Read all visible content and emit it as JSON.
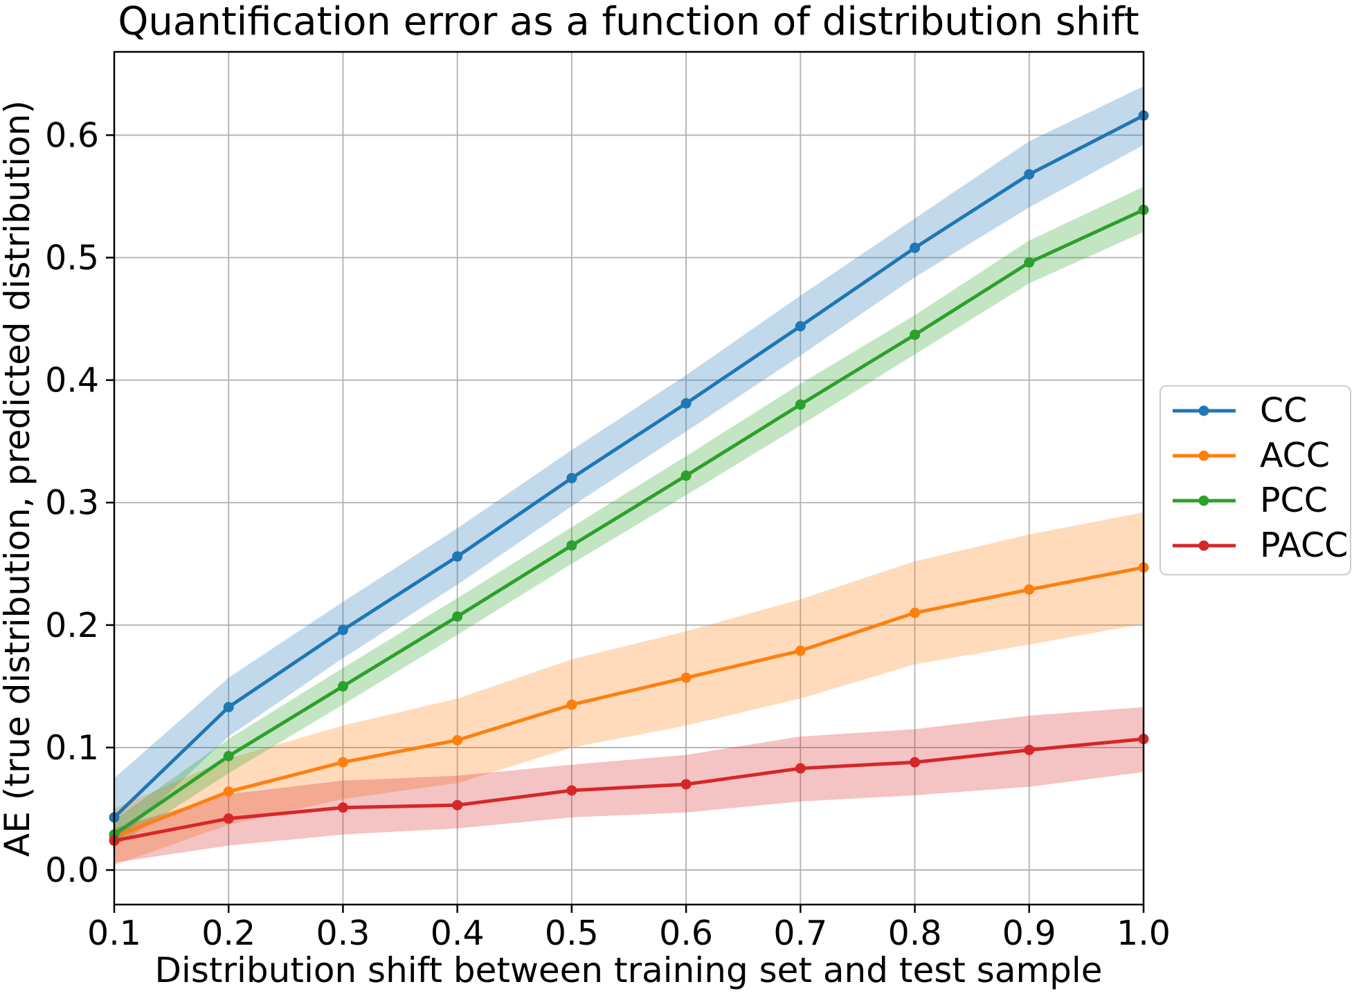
{
  "figure": {
    "background": "#ffffff",
    "text_color": "#000000"
  },
  "chart_data": {
    "type": "line",
    "title": "Quantification error as a function of distribution shift",
    "xlabel": "Distribution shift between training set and test sample",
    "ylabel": "AE (true distribution, predicted distribution)",
    "x": [
      0.1,
      0.2,
      0.3,
      0.4,
      0.5,
      0.6,
      0.7,
      0.8,
      0.9,
      1.0
    ],
    "x_tick_labels": [
      "0.1",
      "0.2",
      "0.3",
      "0.4",
      "0.5",
      "0.6",
      "0.7",
      "0.8",
      "0.9",
      "1.0"
    ],
    "y_ticks": [
      0.0,
      0.1,
      0.2,
      0.3,
      0.4,
      0.5,
      0.6
    ],
    "y_tick_labels": [
      "0.0",
      "0.1",
      "0.2",
      "0.3",
      "0.4",
      "0.5",
      "0.6"
    ],
    "xlim": [
      0.1,
      1.0
    ],
    "ylim": [
      -0.0282,
      0.668
    ],
    "grid": true,
    "grid_color": "#b0b0b0",
    "band_opacity": 0.28,
    "legend_position": "outside-right",
    "series": [
      {
        "name": "CC",
        "color": "#1f77b4",
        "values": [
          0.043,
          0.133,
          0.196,
          0.256,
          0.32,
          0.381,
          0.444,
          0.508,
          0.568,
          0.616
        ],
        "band_lower": [
          0.021,
          0.109,
          0.173,
          0.233,
          0.297,
          0.358,
          0.42,
          0.484,
          0.541,
          0.592
        ],
        "band_upper": [
          0.075,
          0.157,
          0.219,
          0.279,
          0.343,
          0.404,
          0.469,
          0.532,
          0.595,
          0.64
        ]
      },
      {
        "name": "ACC",
        "color": "#ff7f0e",
        "values": [
          0.027,
          0.064,
          0.088,
          0.106,
          0.135,
          0.157,
          0.179,
          0.21,
          0.229,
          0.247
        ],
        "band_lower": [
          0.004,
          0.037,
          0.058,
          0.071,
          0.1,
          0.118,
          0.14,
          0.168,
          0.184,
          0.201
        ],
        "band_upper": [
          0.05,
          0.091,
          0.118,
          0.14,
          0.172,
          0.195,
          0.221,
          0.252,
          0.274,
          0.292
        ]
      },
      {
        "name": "PCC",
        "color": "#2ca02c",
        "values": [
          0.029,
          0.093,
          0.15,
          0.207,
          0.265,
          0.322,
          0.38,
          0.437,
          0.496,
          0.539
        ],
        "band_lower": [
          0.019,
          0.079,
          0.135,
          0.192,
          0.25,
          0.306,
          0.363,
          0.421,
          0.479,
          0.521
        ],
        "band_upper": [
          0.041,
          0.107,
          0.165,
          0.222,
          0.28,
          0.338,
          0.397,
          0.453,
          0.514,
          0.558
        ]
      },
      {
        "name": "PACC",
        "color": "#d62728",
        "values": [
          0.024,
          0.042,
          0.051,
          0.053,
          0.065,
          0.07,
          0.083,
          0.088,
          0.098,
          0.107
        ],
        "band_lower": [
          0.006,
          0.02,
          0.029,
          0.034,
          0.043,
          0.047,
          0.056,
          0.061,
          0.068,
          0.08
        ],
        "band_upper": [
          0.034,
          0.062,
          0.073,
          0.077,
          0.086,
          0.094,
          0.109,
          0.115,
          0.126,
          0.133
        ]
      }
    ]
  },
  "legend": {
    "entries": [
      "CC",
      "ACC",
      "PCC",
      "PACC"
    ]
  }
}
